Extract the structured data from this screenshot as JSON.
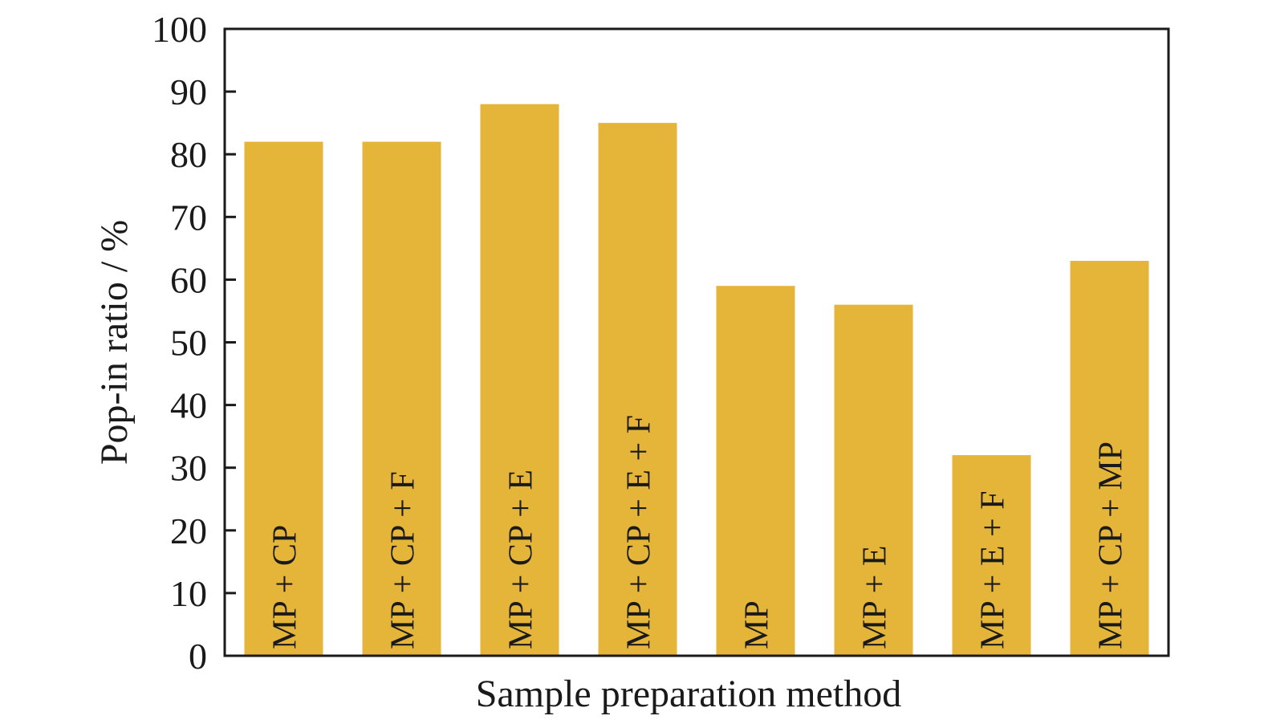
{
  "chart_data": {
    "type": "bar",
    "title": "",
    "xlabel": "Sample preparation method",
    "ylabel": "Pop-in ratio / %",
    "ylim": [
      0,
      100
    ],
    "yticks": [
      0,
      10,
      20,
      30,
      40,
      50,
      60,
      70,
      80,
      90,
      100
    ],
    "categories": [
      "MP + CP",
      "MP + CP + F",
      "MP + CP + E",
      "MP + CP + E + F",
      "MP",
      "MP + E",
      "MP + E + F",
      "MP + CP + MP"
    ],
    "values": [
      82,
      82,
      88,
      85,
      59,
      56,
      32,
      63
    ],
    "bar_color": "#e4b538",
    "grid": false,
    "legend": "none"
  }
}
